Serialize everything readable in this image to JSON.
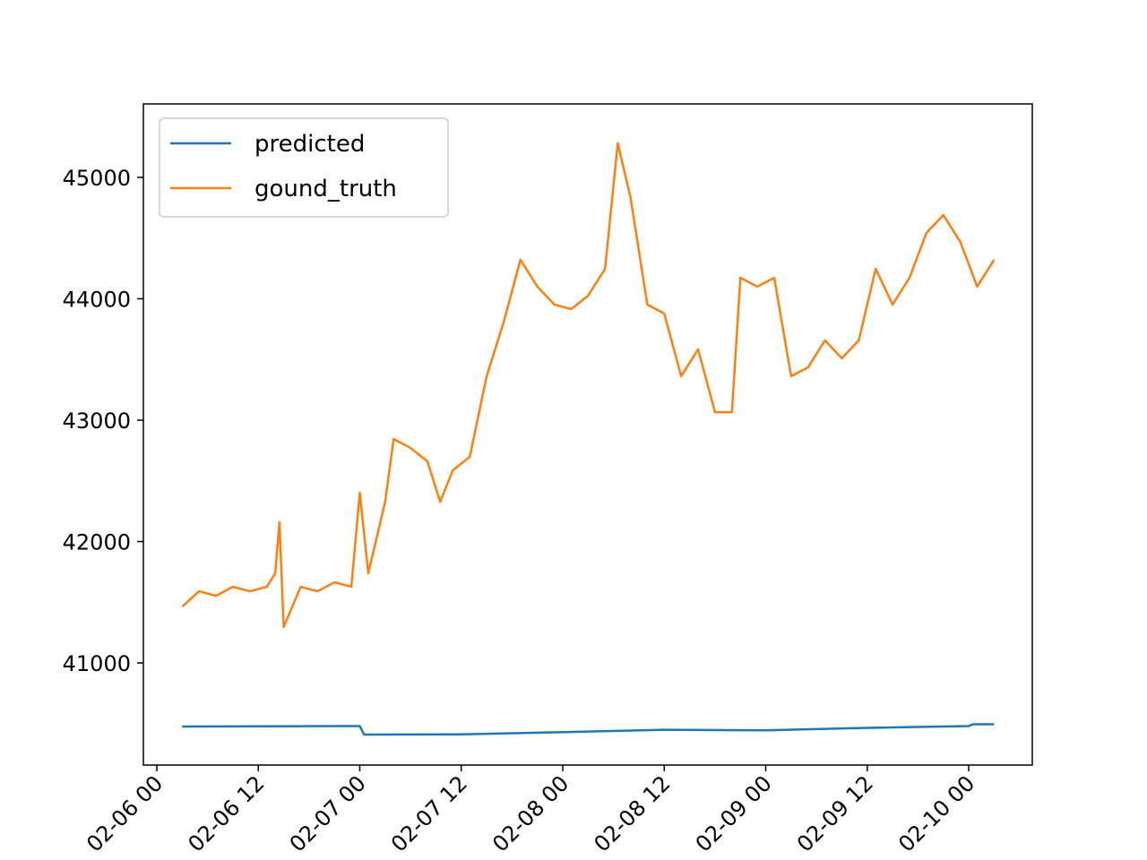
{
  "chart_data": {
    "type": "line",
    "series": [
      {
        "name": "predicted",
        "color": "#1f77b4",
        "x": [
          3,
          24,
          24.5,
          36,
          48,
          60,
          72,
          84,
          96,
          96.5,
          99
        ],
        "values": [
          40476,
          40480,
          40410,
          40412,
          40430,
          40450,
          40445,
          40465,
          40480,
          40495,
          40495
        ]
      },
      {
        "name": "gound_truth",
        "color": "#ff7f0e",
        "x": [
          3,
          5,
          7,
          9,
          11,
          13,
          14,
          14.5,
          15,
          17,
          19,
          21,
          23,
          24,
          25,
          27,
          28,
          30,
          32,
          33.5,
          35,
          37,
          39,
          41,
          43,
          45,
          47,
          49,
          51,
          53,
          54.5,
          56,
          58,
          60,
          62,
          64,
          66,
          68,
          69,
          71,
          73,
          75,
          77,
          79,
          81,
          83,
          85,
          87,
          89,
          91,
          93,
          95,
          97,
          99
        ],
        "values": [
          41465,
          41590,
          41553,
          41627,
          41590,
          41627,
          41738,
          42159,
          41295,
          41627,
          41590,
          41664,
          41627,
          42402,
          41738,
          42328,
          42845,
          42771,
          42660,
          42328,
          42587,
          42697,
          43362,
          43805,
          44321,
          44100,
          43952,
          43915,
          44026,
          44247,
          45280,
          44838,
          43952,
          43878,
          43362,
          43583,
          43066,
          43066,
          44173,
          44100,
          44173,
          43362,
          43435,
          43657,
          43509,
          43657,
          44247,
          43952,
          44173,
          44542,
          44690,
          44469,
          44100,
          44321
        ]
      }
    ],
    "xlim": [
      -1.59,
      103.52
    ],
    "xticks": [
      {
        "value": 0,
        "label": "02-06 00"
      },
      {
        "value": 12,
        "label": "02-06 12"
      },
      {
        "value": 24,
        "label": "02-07 00"
      },
      {
        "value": 36,
        "label": "02-07 12"
      },
      {
        "value": 48,
        "label": "02-08 00"
      },
      {
        "value": 60,
        "label": "02-08 12"
      },
      {
        "value": 72,
        "label": "02-09 00"
      },
      {
        "value": 84,
        "label": "02-09 12"
      },
      {
        "value": 96,
        "label": "02-10 00"
      }
    ],
    "ylim": [
      40159,
      45605
    ],
    "yticks": [
      41000,
      42000,
      43000,
      44000,
      45000
    ],
    "legend": "upper left"
  }
}
